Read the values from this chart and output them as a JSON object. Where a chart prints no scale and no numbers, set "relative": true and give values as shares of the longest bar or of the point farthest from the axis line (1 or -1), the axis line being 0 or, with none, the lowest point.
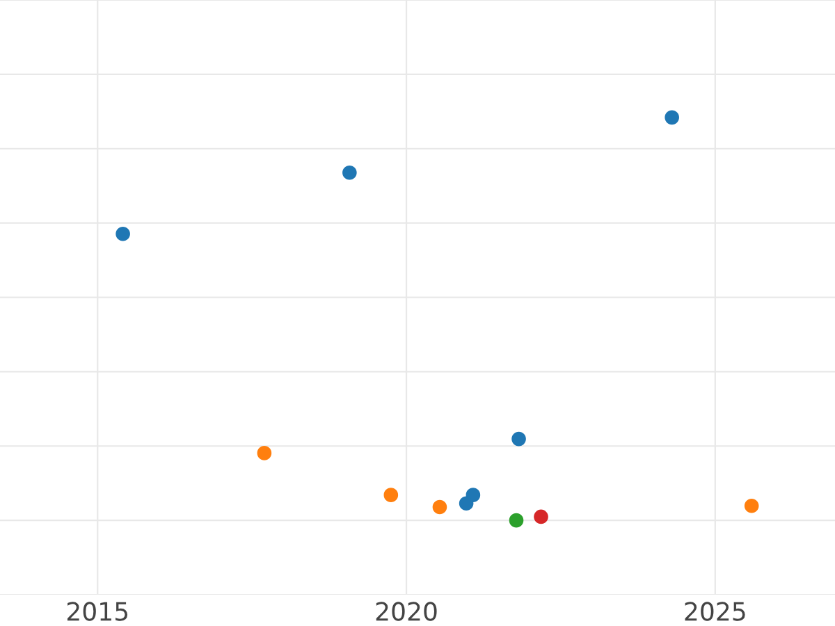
{
  "chart_data": {
    "type": "scatter",
    "relative": true,
    "xlim": [
      2013.42,
      2026.94
    ],
    "xticks": [
      2015,
      2020,
      2025
    ],
    "grid": true,
    "legend": false,
    "marker": "circle",
    "tick_labels": "x",
    "series": [
      {
        "color": "#1f77b4",
        "x": [
          2015.41,
          2019.08,
          2024.3,
          2021.82,
          2021.08,
          2020.97
        ],
        "values": [
          0.711,
          0.863,
          1,
          0.202,
          0.063,
          0.042
        ]
      },
      {
        "color": "#ff7f0e",
        "x": [
          2017.7,
          2019.75,
          2020.54,
          2025.59
        ],
        "values": [
          0.167,
          0.063,
          0.033,
          0.036
        ]
      },
      {
        "color": "#2ca02c",
        "x": [
          2021.78
        ],
        "values": [
          0
        ]
      },
      {
        "color": "#d62728",
        "x": [
          2022.18
        ],
        "values": [
          0.009
        ]
      }
    ]
  }
}
